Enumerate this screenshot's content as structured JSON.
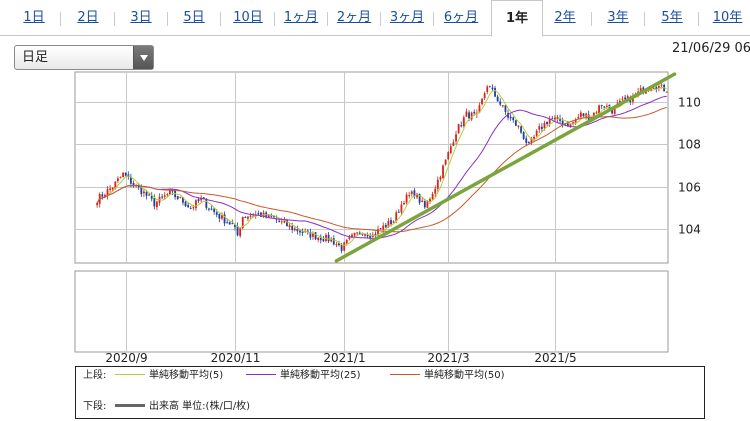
{
  "tabs": [
    {
      "label": "1日",
      "active": false
    },
    {
      "label": "2日",
      "active": false
    },
    {
      "label": "3日",
      "active": false
    },
    {
      "label": "5日",
      "active": false
    },
    {
      "label": "10日",
      "active": false
    },
    {
      "label": "1ヶ月",
      "active": false
    },
    {
      "label": "2ヶ月",
      "active": false
    },
    {
      "label": "3ヶ月",
      "active": false
    },
    {
      "label": "6ヶ月",
      "active": false
    },
    {
      "label": "1年",
      "active": true
    },
    {
      "label": "2年",
      "active": false
    },
    {
      "label": "3年",
      "active": false
    },
    {
      "label": "5年",
      "active": false
    },
    {
      "label": "10年",
      "active": false
    }
  ],
  "dropdown": {
    "value": "日足"
  },
  "datetime": "21/06/29 06:",
  "colors": {
    "up": "#d9241b",
    "down": "#1f3f9e",
    "ma5": "#b5cc3a",
    "ma25": "#8a2fc0",
    "ma50": "#c75a2a",
    "trendline": "#7aa53c",
    "grid": "#c8c8c8"
  },
  "chart_data": {
    "type": "candlestick",
    "price_panel": {
      "ylim": [
        102.4,
        111.4
      ],
      "yticks": [
        104,
        106,
        108,
        110
      ],
      "ytick_labels": [
        "104",
        "106",
        "108",
        "110"
      ]
    },
    "volume_panel": {
      "values": []
    },
    "xticks": [
      {
        "label": "2020/9",
        "index": 19
      },
      {
        "label": "2020/11",
        "index": 61
      },
      {
        "label": "2021/1",
        "index": 103
      },
      {
        "label": "2021/3",
        "index": 143
      },
      {
        "label": "2021/5",
        "index": 184
      }
    ],
    "n_days": 228,
    "start_index": 8,
    "keypoints": [
      [
        8,
        105.4
      ],
      [
        14,
        106.0
      ],
      [
        18,
        106.6
      ],
      [
        22,
        106.1
      ],
      [
        26,
        105.7
      ],
      [
        30,
        105.2
      ],
      [
        36,
        105.7
      ],
      [
        40,
        105.4
      ],
      [
        44,
        105.0
      ],
      [
        48,
        105.4
      ],
      [
        52,
        104.9
      ],
      [
        56,
        104.5
      ],
      [
        60,
        104.2
      ],
      [
        62,
        103.7
      ],
      [
        64,
        104.6
      ],
      [
        70,
        104.7
      ],
      [
        76,
        104.5
      ],
      [
        82,
        104.1
      ],
      [
        88,
        103.8
      ],
      [
        94,
        103.6
      ],
      [
        98,
        103.5
      ],
      [
        102,
        103.1
      ],
      [
        106,
        103.6
      ],
      [
        110,
        103.9
      ],
      [
        114,
        103.7
      ],
      [
        118,
        104.1
      ],
      [
        122,
        104.4
      ],
      [
        126,
        105.4
      ],
      [
        130,
        105.7
      ],
      [
        134,
        105.0
      ],
      [
        138,
        106.0
      ],
      [
        142,
        107.2
      ],
      [
        146,
        108.6
      ],
      [
        150,
        109.4
      ],
      [
        154,
        109.3
      ],
      [
        158,
        110.8
      ],
      [
        162,
        110.1
      ],
      [
        166,
        109.3
      ],
      [
        170,
        108.8
      ],
      [
        174,
        107.9
      ],
      [
        178,
        108.7
      ],
      [
        182,
        109.2
      ],
      [
        186,
        109.1
      ],
      [
        190,
        108.9
      ],
      [
        194,
        109.4
      ],
      [
        198,
        109.3
      ],
      [
        202,
        109.9
      ],
      [
        206,
        109.6
      ],
      [
        210,
        110.0
      ],
      [
        214,
        110.2
      ],
      [
        218,
        110.6
      ],
      [
        222,
        110.8
      ],
      [
        226,
        110.6
      ]
    ],
    "series": [
      {
        "name": "単純移動平均(5)",
        "type": "ma",
        "period": 5
      },
      {
        "name": "単純移動平均(25)",
        "type": "ma",
        "period": 25
      },
      {
        "name": "単純移動平均(50)",
        "type": "ma",
        "period": 50
      }
    ],
    "trendline": {
      "from": [
        100,
        102.5
      ],
      "to": [
        230,
        111.3
      ]
    }
  },
  "legend": {
    "upper_label": "上段:",
    "lower_label": "下段:",
    "ma5": "単純移動平均(5)",
    "ma25": "単純移動平均(25)",
    "ma50": "単純移動平均(50)",
    "volume": "出来高 単位:(株/口/枚)"
  }
}
